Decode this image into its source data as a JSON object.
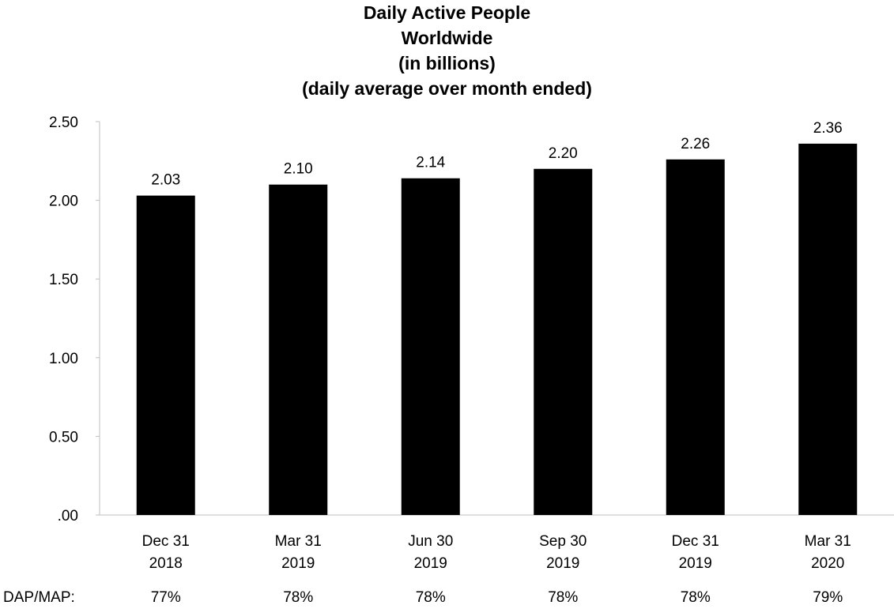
{
  "chart_data": {
    "type": "bar",
    "title_lines": [
      "Daily Active People",
      "Worldwide",
      "(in billions)",
      "(daily average over month ended)"
    ],
    "categories": [
      [
        "Dec 31",
        "2018"
      ],
      [
        "Mar 31",
        "2019"
      ],
      [
        "Jun 30",
        "2019"
      ],
      [
        "Sep 30",
        "2019"
      ],
      [
        "Dec 31",
        "2019"
      ],
      [
        "Mar 31",
        "2020"
      ]
    ],
    "values": [
      2.03,
      2.1,
      2.14,
      2.2,
      2.26,
      2.36
    ],
    "data_labels": [
      "2.03",
      "2.10",
      "2.14",
      "2.20",
      "2.26",
      "2.36"
    ],
    "y_ticks": [
      0,
      0.5,
      1.0,
      1.5,
      2.0,
      2.5
    ],
    "y_tick_labels": [
      ".00",
      "0.50",
      "1.00",
      "1.50",
      "2.00",
      "2.50"
    ],
    "ylim": [
      0,
      2.5
    ],
    "grid": false,
    "bar_color": "#000000",
    "ratio_row": {
      "label": "DAP/MAP:",
      "values": [
        "77%",
        "78%",
        "78%",
        "78%",
        "78%",
        "79%"
      ]
    }
  }
}
